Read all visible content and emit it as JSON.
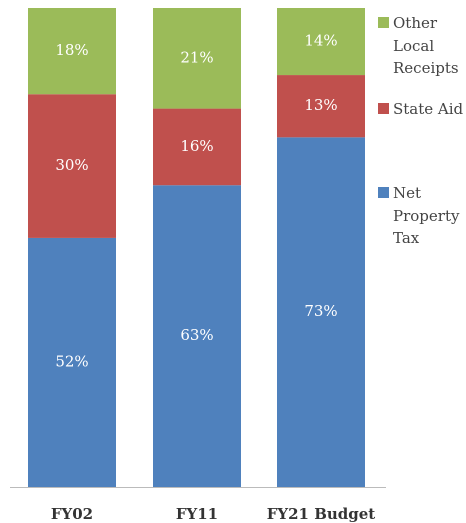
{
  "chart_data": {
    "type": "stacked-bar",
    "categories": [
      "FY02",
      "FY11",
      "FY21 Budget"
    ],
    "series": [
      {
        "name": "Net Property Tax",
        "color": "#4f81bd",
        "values": [
          52,
          63,
          73
        ],
        "value_labels": [
          "52%",
          "63%",
          "73%"
        ]
      },
      {
        "name": "State Aid",
        "color": "#c0504d",
        "values": [
          30,
          16,
          13
        ],
        "value_labels": [
          "30%",
          "16%",
          "13%"
        ]
      },
      {
        "name": "Other Local Receipts",
        "color": "#9bbb59",
        "values": [
          18,
          21,
          14
        ],
        "value_labels": [
          "18%",
          "21%",
          "14%"
        ]
      }
    ],
    "ylim": [
      0,
      100
    ],
    "legend": "right"
  }
}
